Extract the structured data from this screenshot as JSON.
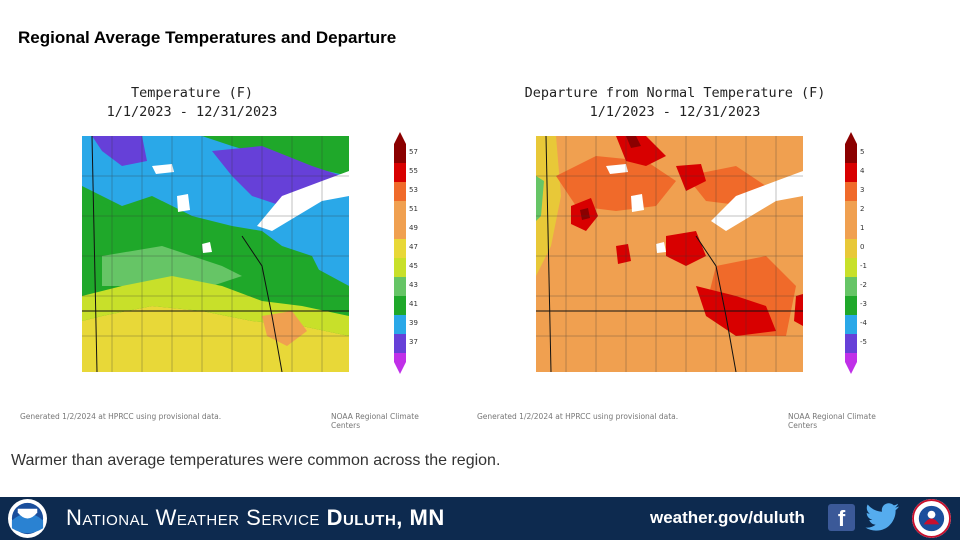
{
  "title": "Regional Average Temperatures and Departure",
  "left_panel": {
    "title_line1": "Temperature (F)",
    "title_line2": "1/1/2023 - 12/31/2023",
    "scale_labels": [
      "57",
      "55",
      "53",
      "51",
      "49",
      "47",
      "45",
      "43",
      "41",
      "39",
      "37"
    ],
    "scale_colors": [
      "#8b0000",
      "#d80000",
      "#f06a2a",
      "#f0a050",
      "#e8d838",
      "#c8e02a",
      "#66c566",
      "#1fa82a",
      "#2aa8e8",
      "#6640d8",
      "#c030e8"
    ],
    "footer_left": "Generated 1/2/2024 at HPRCC using provisional data.",
    "footer_right": "NOAA Regional Climate Centers"
  },
  "right_panel": {
    "title_line1": "Departure from Normal Temperature (F)",
    "title_line2": "1/1/2023 - 12/31/2023",
    "scale_labels": [
      "5",
      "4",
      "3",
      "2",
      "1",
      "0",
      "-1",
      "-2",
      "-3",
      "-4",
      "-5"
    ],
    "scale_colors": [
      "#8b0000",
      "#d80000",
      "#f06a2a",
      "#f0a050",
      "#e8c838",
      "#c8e02a",
      "#66c566",
      "#1fa82a",
      "#2aa8e8",
      "#6640d8",
      "#c030e8"
    ],
    "footer_left": "Generated 1/2/2024 at HPRCC using provisional data.",
    "footer_right": "NOAA Regional Climate Centers"
  },
  "caption": "Warmer than average temperatures were common across the region.",
  "banner": {
    "org_part1": "National Weather Service",
    "org_part2": "Duluth, MN",
    "url": "weather.gov/duluth",
    "facebook_icon": "facebook-icon",
    "twitter_icon": "twitter-icon",
    "noaa_logo": "noaa-logo",
    "nws_logo": "nws-logo"
  }
}
